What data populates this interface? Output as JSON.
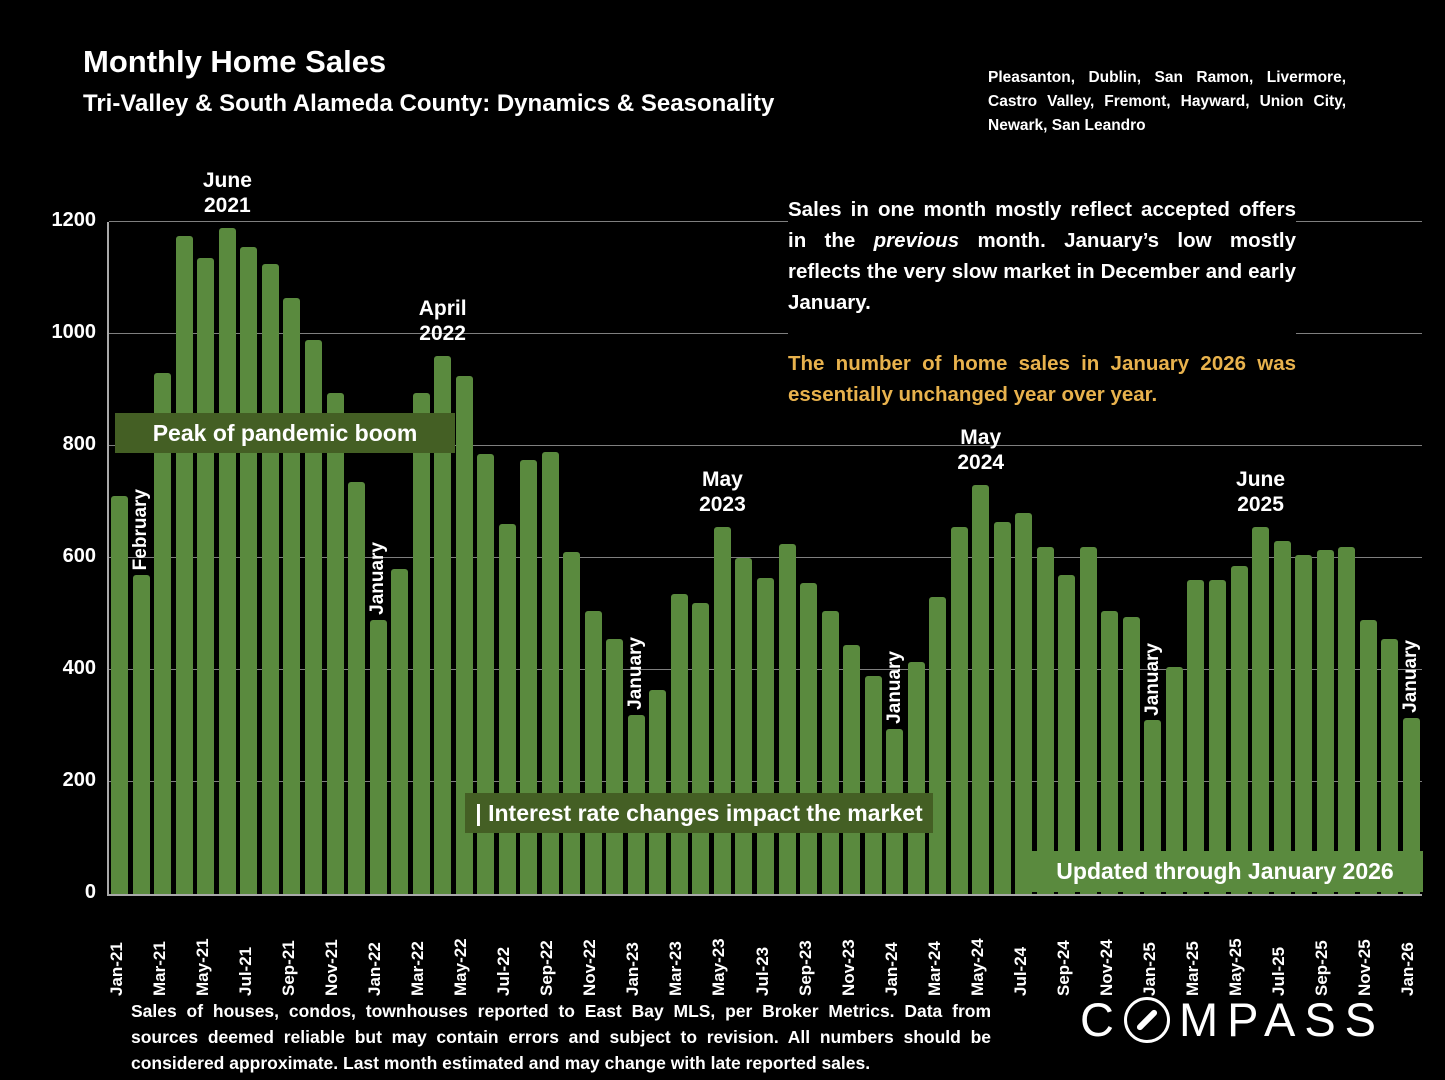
{
  "header": {
    "title": "Monthly Home Sales",
    "subtitle": "Tri-Valley & South Alameda County: Dynamics & Seasonality",
    "region_list": "Pleasanton, Dublin, San Ramon, Livermore, Castro Valley, Fremont, Hayward, Union City, Newark, San Leandro"
  },
  "note": {
    "part1": "Sales in one month mostly reflect accepted offers in the ",
    "italic": "previous",
    "part2": " month. January’s low mostly reflects the very slow market in December and early January.",
    "highlight": "The number of home sales in January 2026 was essentially unchanged year over year."
  },
  "banners": {
    "pandemic": "Peak of pandemic boom",
    "rates": "| Interest rate changes impact the market",
    "updated": "Updated through January 2026"
  },
  "chart_data": {
    "type": "bar",
    "title": "Monthly Home Sales",
    "xlabel": "",
    "ylabel": "",
    "ylim": [
      0,
      1200
    ],
    "yticks": [
      0,
      200,
      400,
      600,
      800,
      1000,
      1200
    ],
    "grid": true,
    "xtick_every": 2,
    "categories": [
      "Jan-21",
      "Feb-21",
      "Mar-21",
      "Apr-21",
      "May-21",
      "Jun-21",
      "Jul-21",
      "Aug-21",
      "Sep-21",
      "Oct-21",
      "Nov-21",
      "Dec-21",
      "Jan-22",
      "Feb-22",
      "Mar-22",
      "Apr-22",
      "May-22",
      "Jun-22",
      "Jul-22",
      "Aug-22",
      "Sep-22",
      "Oct-22",
      "Nov-22",
      "Dec-22",
      "Jan-23",
      "Feb-23",
      "Mar-23",
      "Apr-23",
      "May-23",
      "Jun-23",
      "Jul-23",
      "Aug-23",
      "Sep-23",
      "Oct-23",
      "Nov-23",
      "Dec-23",
      "Jan-24",
      "Feb-24",
      "Mar-24",
      "Apr-24",
      "May-24",
      "Jun-24",
      "Jul-24",
      "Aug-24",
      "Sep-24",
      "Oct-24",
      "Nov-24",
      "Dec-24",
      "Jan-25",
      "Feb-25",
      "Mar-25",
      "Apr-25",
      "May-25",
      "Jun-25",
      "Jul-25",
      "Aug-25",
      "Sep-25",
      "Oct-25",
      "Nov-25",
      "Dec-25",
      "Jan-26"
    ],
    "values": [
      710,
      570,
      930,
      1175,
      1135,
      1190,
      1155,
      1125,
      1065,
      990,
      895,
      735,
      490,
      580,
      895,
      960,
      925,
      785,
      660,
      775,
      790,
      610,
      505,
      455,
      320,
      365,
      535,
      520,
      655,
      600,
      565,
      625,
      555,
      505,
      445,
      390,
      295,
      415,
      530,
      655,
      730,
      665,
      680,
      620,
      570,
      620,
      505,
      495,
      310,
      405,
      560,
      560,
      585,
      655,
      630,
      605,
      615,
      620,
      490,
      455,
      315
    ],
    "bar_month_labels": [
      {
        "index": 1,
        "label": "February"
      },
      {
        "index": 12,
        "label": "January"
      },
      {
        "index": 24,
        "label": "January"
      },
      {
        "index": 36,
        "label": "January"
      },
      {
        "index": 48,
        "label": "January"
      },
      {
        "index": 60,
        "label": "January"
      }
    ],
    "peak_labels": [
      {
        "index": 5,
        "text": "June 2021"
      },
      {
        "index": 15,
        "text": "April 2022"
      },
      {
        "index": 28,
        "text": "May 2023"
      },
      {
        "index": 40,
        "text": "May 2024"
      },
      {
        "index": 53,
        "text": "June 2025"
      }
    ]
  },
  "footer": {
    "disclaimer": "Sales of houses, condos, townhouses reported to East Bay MLS, per Broker Metrics. Data from sources deemed reliable but may contain errors and subject to revision. All numbers should be considered approximate.  Last month estimated and may change with late reported sales.",
    "logo_prefix": "C",
    "logo_suffix": "MPASS"
  },
  "colors": {
    "background": "#000000",
    "bar": "#5a8a3e",
    "banner_dark": "#445f24",
    "gold": "#e8b24d",
    "text": "#ffffff",
    "gridline": "#7f7f7f"
  }
}
